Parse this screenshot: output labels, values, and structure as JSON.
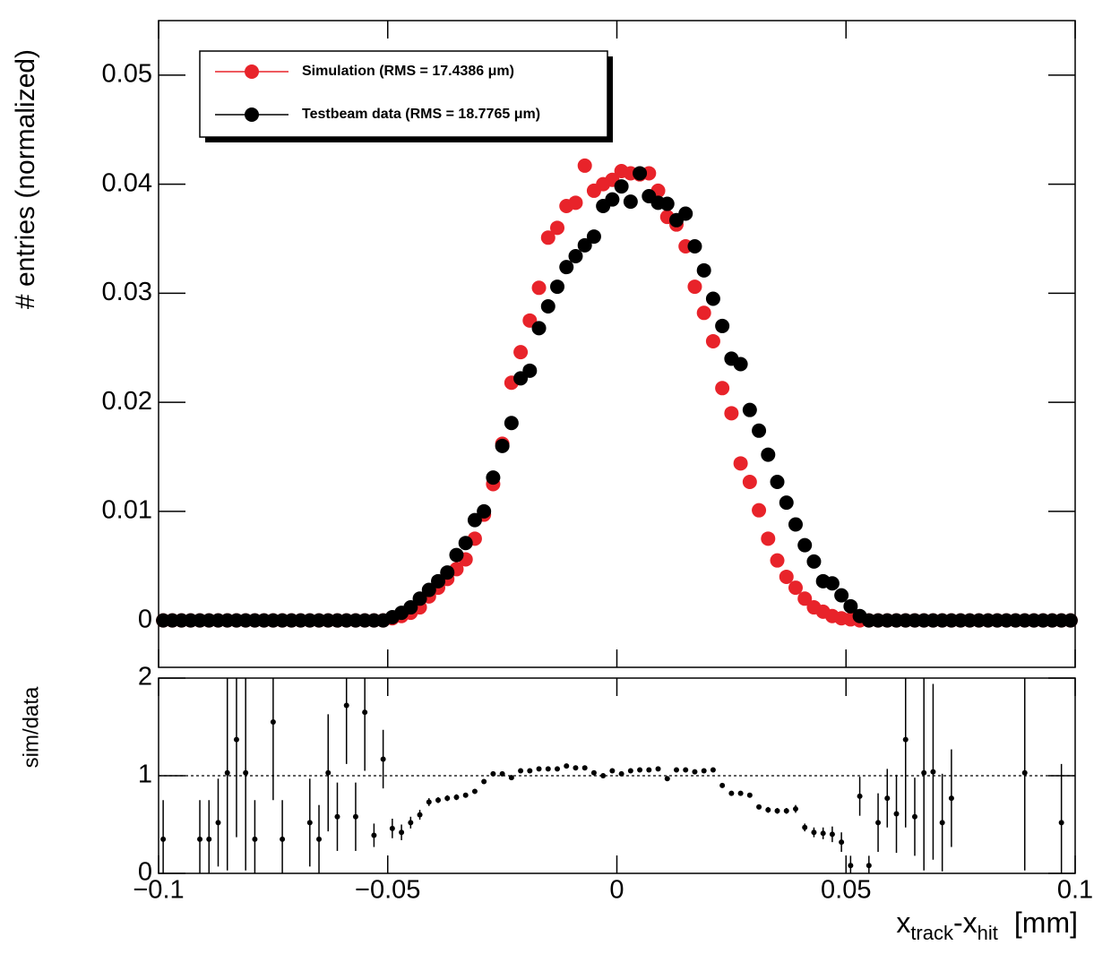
{
  "chart_data": [
    {
      "type": "scatter",
      "ylabel": "# entries (normalized)",
      "x": [
        -0.099,
        -0.097,
        -0.095,
        -0.093,
        -0.091,
        -0.089,
        -0.087,
        -0.085,
        -0.083,
        -0.081,
        -0.079,
        -0.077,
        -0.075,
        -0.073,
        -0.071,
        -0.069,
        -0.067,
        -0.065,
        -0.063,
        -0.061,
        -0.059,
        -0.057,
        -0.055,
        -0.053,
        -0.051,
        -0.049,
        -0.047,
        -0.045,
        -0.043,
        -0.041,
        -0.039,
        -0.037,
        -0.035,
        -0.033,
        -0.031,
        -0.029,
        -0.027,
        -0.025,
        -0.023,
        -0.021,
        -0.019,
        -0.017,
        -0.015,
        -0.013,
        -0.011,
        -0.009,
        -0.007,
        -0.005,
        -0.003,
        -0.001,
        0.001,
        0.003,
        0.005,
        0.007,
        0.009,
        0.011,
        0.013,
        0.015,
        0.017,
        0.019,
        0.021,
        0.023,
        0.025,
        0.027,
        0.029,
        0.031,
        0.033,
        0.035,
        0.037,
        0.039,
        0.041,
        0.043,
        0.045,
        0.047,
        0.049,
        0.051,
        0.053,
        0.055,
        0.057,
        0.059,
        0.061,
        0.063,
        0.065,
        0.067,
        0.069,
        0.071,
        0.073,
        0.075,
        0.077,
        0.079,
        0.081,
        0.083,
        0.085,
        0.087,
        0.089,
        0.091,
        0.093,
        0.095,
        0.097,
        0.099
      ],
      "series": [
        {
          "name": "Simulation (RMS = 17.4386  μm)",
          "color": "#e8232a",
          "values": [
            0,
            0,
            0,
            0,
            0,
            0,
            0,
            0,
            0,
            0,
            0,
            0,
            0,
            0,
            0,
            0,
            0,
            0,
            0,
            0,
            0,
            0,
            0,
            0,
            0,
            0.0002,
            0.0004,
            0.0007,
            0.0012,
            0.0022,
            0.003,
            0.0038,
            0.0047,
            0.0056,
            0.0075,
            0.0097,
            0.0125,
            0.0162,
            0.0218,
            0.0246,
            0.0275,
            0.0305,
            0.0351,
            0.036,
            0.038,
            0.0383,
            0.0417,
            0.0394,
            0.04,
            0.0404,
            0.0412,
            0.041,
            0.0409,
            0.041,
            0.0394,
            0.037,
            0.0363,
            0.0343,
            0.0306,
            0.0282,
            0.0256,
            0.0213,
            0.019,
            0.0144,
            0.0127,
            0.0101,
            0.0075,
            0.0055,
            0.004,
            0.003,
            0.002,
            0.0012,
            0.0008,
            0.0004,
            0.0002,
            0.0001,
            0,
            0,
            0,
            0,
            0,
            0,
            0,
            0,
            0,
            0,
            0,
            0,
            0,
            0,
            0,
            0,
            0,
            0,
            0,
            0,
            0,
            0,
            0,
            0
          ]
        },
        {
          "name": "Testbeam data (RMS = 18.7765  μm)",
          "color": "#000000",
          "values": [
            0,
            0,
            0,
            0,
            0,
            0,
            0,
            0,
            0,
            0,
            0,
            0,
            0,
            0,
            0,
            0,
            0,
            0,
            0,
            0,
            0,
            0,
            0,
            0,
            0,
            0.0003,
            0.0007,
            0.0012,
            0.002,
            0.0028,
            0.0036,
            0.0044,
            0.006,
            0.0071,
            0.0092,
            0.01,
            0.0131,
            0.016,
            0.0181,
            0.0222,
            0.0229,
            0.0268,
            0.0288,
            0.0306,
            0.0324,
            0.0334,
            0.0344,
            0.0352,
            0.038,
            0.0386,
            0.0398,
            0.0384,
            0.041,
            0.0389,
            0.0383,
            0.0382,
            0.0367,
            0.0373,
            0.0343,
            0.0321,
            0.0295,
            0.027,
            0.024,
            0.0235,
            0.0193,
            0.0174,
            0.0152,
            0.0127,
            0.0108,
            0.0088,
            0.0069,
            0.0054,
            0.0036,
            0.0034,
            0.0023,
            0.0013,
            0.0004,
            0,
            0,
            0,
            0,
            0,
            0,
            0,
            0,
            0,
            0,
            0,
            0,
            0,
            0,
            0,
            0,
            0,
            0,
            0,
            0,
            0,
            0,
            0
          ]
        }
      ],
      "xlim": [
        -0.1,
        0.1
      ],
      "ylim": [
        -0.0043,
        0.055
      ],
      "yticks": [
        0,
        0.01,
        0.02,
        0.03,
        0.04,
        0.05
      ],
      "legend": "upper left"
    },
    {
      "type": "scatter",
      "ylabel": "sim/data",
      "xlabel": [
        "x",
        "track",
        "-x",
        "hit",
        "[mm]"
      ],
      "x": [
        -0.099,
        -0.097,
        -0.095,
        -0.093,
        -0.091,
        -0.089,
        -0.087,
        -0.085,
        -0.083,
        -0.081,
        -0.079,
        -0.077,
        -0.075,
        -0.073,
        -0.071,
        -0.069,
        -0.067,
        -0.065,
        -0.063,
        -0.061,
        -0.059,
        -0.057,
        -0.055,
        -0.053,
        -0.051,
        -0.049,
        -0.047,
        -0.045,
        -0.043,
        -0.041,
        -0.039,
        -0.037,
        -0.035,
        -0.033,
        -0.031,
        -0.029,
        -0.027,
        -0.025,
        -0.023,
        -0.021,
        -0.019,
        -0.017,
        -0.015,
        -0.013,
        -0.011,
        -0.009,
        -0.007,
        -0.005,
        -0.003,
        -0.001,
        0.001,
        0.003,
        0.005,
        0.007,
        0.009,
        0.011,
        0.013,
        0.015,
        0.017,
        0.019,
        0.021,
        0.023,
        0.025,
        0.027,
        0.029,
        0.031,
        0.033,
        0.035,
        0.037,
        0.039,
        0.041,
        0.043,
        0.045,
        0.047,
        0.049,
        0.051,
        0.053,
        0.055,
        0.057,
        0.059,
        0.061,
        0.063,
        0.065,
        0.067,
        0.069,
        0.071,
        0.073,
        0.075,
        0.077,
        0.079,
        0.081,
        0.083,
        0.085,
        0.087,
        0.089,
        0.091,
        0.093,
        0.095,
        0.097,
        0.099
      ],
      "values": [
        0.35,
        null,
        null,
        null,
        0.35,
        0.35,
        0.52,
        1.03,
        1.37,
        1.03,
        0.35,
        null,
        1.55,
        0.35,
        null,
        null,
        0.52,
        0.35,
        1.03,
        0.58,
        1.72,
        0.58,
        1.65,
        0.39,
        1.17,
        0.46,
        0.42,
        0.52,
        0.6,
        0.73,
        0.75,
        0.77,
        0.78,
        0.8,
        0.84,
        0.94,
        1.02,
        1.02,
        0.98,
        1.05,
        1.05,
        1.07,
        1.07,
        1.07,
        1.1,
        1.08,
        1.08,
        1.03,
        1.0,
        1.05,
        1.02,
        1.05,
        1.06,
        1.06,
        1.07,
        0.97,
        1.06,
        1.06,
        1.04,
        1.05,
        1.06,
        0.9,
        0.82,
        0.82,
        0.8,
        0.68,
        0.65,
        0.64,
        0.64,
        0.66,
        0.47,
        0.42,
        0.41,
        0.4,
        0.32,
        0.08,
        0.79,
        0.08,
        0.52,
        0.77,
        0.61,
        1.37,
        0.58,
        1.03,
        1.04,
        0.52,
        0.77,
        null,
        null,
        null,
        null,
        null,
        null,
        null,
        1.03,
        null,
        null,
        null,
        0.52,
        null
      ],
      "errors": [
        0.4,
        null,
        null,
        null,
        0.4,
        0.4,
        0.45,
        1.0,
        1.0,
        1.0,
        0.4,
        null,
        0.8,
        0.4,
        null,
        null,
        0.45,
        0.35,
        0.6,
        0.35,
        0.6,
        0.35,
        0.6,
        0.12,
        0.3,
        0.1,
        0.08,
        0.06,
        0.05,
        0.04,
        0.03,
        0.03,
        0.03,
        0.02,
        0.02,
        0.02,
        0.02,
        0.02,
        0.02,
        0.02,
        0.02,
        0.02,
        0.02,
        0.02,
        0.02,
        0.02,
        0.02,
        0.02,
        0.02,
        0.02,
        0.02,
        0.02,
        0.02,
        0.02,
        0.02,
        0.02,
        0.02,
        0.02,
        0.02,
        0.02,
        0.02,
        0.02,
        0.02,
        0.02,
        0.02,
        0.02,
        0.03,
        0.03,
        0.03,
        0.04,
        0.04,
        0.05,
        0.06,
        0.08,
        0.1,
        0.1,
        0.2,
        0.1,
        0.3,
        0.3,
        0.4,
        0.9,
        0.4,
        1.0,
        0.9,
        0.5,
        0.5,
        null,
        null,
        null,
        null,
        null,
        null,
        null,
        1.0,
        null,
        null,
        null,
        0.6,
        null
      ],
      "color": "#000000",
      "xlim": [
        -0.1,
        0.1
      ],
      "xticks": [
        {
          "value": -0.1,
          "label": "−0.1"
        },
        {
          "value": -0.05,
          "label": "−0.05"
        },
        0,
        0.05,
        0.1
      ],
      "ylim": [
        0,
        2
      ],
      "yticks": [
        0,
        1,
        2
      ],
      "reference_line": 1
    }
  ]
}
